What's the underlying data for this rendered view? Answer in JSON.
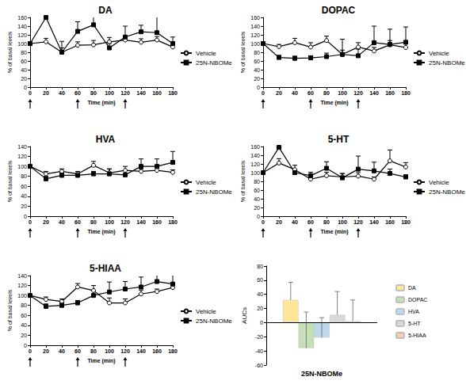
{
  "chart_data": [
    {
      "type": "line",
      "title": "DA",
      "x_label": "Time (min)",
      "y_label": "% of basal levels",
      "x": [
        0,
        20,
        40,
        60,
        80,
        100,
        120,
        140,
        160,
        180
      ],
      "xlim": [
        0,
        180
      ],
      "xticks": [
        0,
        20,
        40,
        60,
        80,
        100,
        120,
        140,
        160,
        180
      ],
      "ylim": [
        0,
        160
      ],
      "yticks": [
        0,
        20,
        40,
        60,
        80,
        100,
        120,
        140,
        160
      ],
      "injections": [
        0,
        60,
        120
      ],
      "grid": false,
      "legend": "right",
      "series": [
        {
          "name": "Vehicle",
          "color": "#000000",
          "marker": "circle-open",
          "values": [
            100,
            104,
            80,
            96,
            97,
            104,
            108,
            103,
            108,
            92
          ],
          "errors": [
            0,
            8,
            10,
            8,
            10,
            10,
            10,
            8,
            8,
            8
          ]
        },
        {
          "name": "25N-NBOMe",
          "color": "#000000",
          "marker": "square",
          "values": [
            100,
            160,
            80,
            128,
            143,
            90,
            115,
            127,
            125,
            100
          ],
          "errors": [
            0,
            35,
            25,
            22,
            30,
            10,
            25,
            15,
            45,
            15
          ]
        }
      ]
    },
    {
      "type": "line",
      "title": "DOPAC",
      "x_label": "Time (min)",
      "y_label": "% of basal levels",
      "x": [
        0,
        20,
        40,
        60,
        80,
        100,
        120,
        140,
        160,
        180
      ],
      "xlim": [
        0,
        180
      ],
      "xticks": [
        0,
        20,
        40,
        60,
        80,
        100,
        120,
        140,
        160,
        180
      ],
      "ylim": [
        0,
        160
      ],
      "yticks": [
        0,
        20,
        40,
        60,
        80,
        100,
        120,
        140,
        160
      ],
      "injections": [
        0,
        60,
        120
      ],
      "grid": false,
      "legend": "right",
      "series": [
        {
          "name": "Vehicle",
          "color": "#000000",
          "marker": "circle-open",
          "values": [
            100,
            93,
            102,
            92,
            107,
            75,
            92,
            83,
            97,
            91
          ],
          "errors": [
            0,
            5,
            10,
            10,
            10,
            35,
            10,
            8,
            10,
            8
          ]
        },
        {
          "name": "25N-NBOMe",
          "color": "#000000",
          "marker": "square",
          "values": [
            100,
            68,
            66,
            67,
            70,
            75,
            72,
            102,
            98,
            103
          ],
          "errors": [
            0,
            5,
            5,
            5,
            8,
            10,
            15,
            38,
            35,
            35
          ]
        }
      ]
    },
    {
      "type": "line",
      "title": "HVA",
      "x_label": "Time (min)",
      "y_label": "% of basal levels",
      "x": [
        0,
        20,
        40,
        60,
        80,
        100,
        120,
        140,
        160,
        180
      ],
      "xlim": [
        0,
        180
      ],
      "xticks": [
        0,
        20,
        40,
        60,
        80,
        100,
        120,
        140,
        160,
        180
      ],
      "ylim": [
        0,
        140
      ],
      "yticks": [
        0,
        20,
        40,
        60,
        80,
        100,
        120,
        140
      ],
      "injections": [
        0,
        60,
        120
      ],
      "grid": false,
      "legend": "right",
      "series": [
        {
          "name": "Vehicle",
          "color": "#000000",
          "marker": "circle-open",
          "values": [
            100,
            85,
            90,
            85,
            102,
            87,
            92,
            90,
            92,
            88
          ],
          "errors": [
            0,
            5,
            5,
            5,
            8,
            8,
            8,
            5,
            5,
            5
          ]
        },
        {
          "name": "25N-NBOMe",
          "color": "#000000",
          "marker": "square",
          "values": [
            100,
            75,
            82,
            82,
            85,
            85,
            83,
            100,
            100,
            108
          ],
          "errors": [
            0,
            5,
            5,
            5,
            5,
            10,
            10,
            15,
            15,
            22
          ]
        }
      ]
    },
    {
      "type": "line",
      "title": "5-HT",
      "x_label": "Time (min)",
      "y_label": "% of basal levels",
      "x": [
        0,
        20,
        40,
        60,
        80,
        100,
        120,
        140,
        160,
        180
      ],
      "xlim": [
        0,
        180
      ],
      "xticks": [
        0,
        20,
        40,
        60,
        80,
        100,
        120,
        140,
        160,
        180
      ],
      "ylim": [
        0,
        160
      ],
      "yticks": [
        0,
        20,
        40,
        60,
        80,
        100,
        120,
        140,
        160
      ],
      "injections": [
        0,
        60,
        120
      ],
      "grid": false,
      "legend": "right",
      "series": [
        {
          "name": "Vehicle",
          "color": "#000000",
          "marker": "circle-open",
          "values": [
            100,
            122,
            107,
            85,
            93,
            90,
            92,
            85,
            127,
            113
          ],
          "errors": [
            0,
            10,
            10,
            5,
            8,
            8,
            8,
            5,
            25,
            10
          ]
        },
        {
          "name": "25N-NBOMe",
          "color": "#000000",
          "marker": "square",
          "values": [
            100,
            158,
            100,
            93,
            110,
            88,
            108,
            104,
            98,
            90
          ],
          "errors": [
            0,
            68,
            8,
            8,
            15,
            10,
            30,
            20,
            10,
            5
          ]
        }
      ]
    },
    {
      "type": "line",
      "title": "5-HIAA",
      "x_label": "Time (min)",
      "y_label": "% of basal levels",
      "x": [
        0,
        20,
        40,
        60,
        80,
        100,
        120,
        140,
        160,
        180
      ],
      "xlim": [
        0,
        180
      ],
      "xticks": [
        0,
        20,
        40,
        60,
        80,
        100,
        120,
        140,
        160,
        180
      ],
      "ylim": [
        0,
        140
      ],
      "yticks": [
        0,
        20,
        40,
        60,
        80,
        100,
        120,
        140
      ],
      "injections": [
        0,
        60,
        120
      ],
      "grid": false,
      "legend": "right",
      "series": [
        {
          "name": "Vehicle",
          "color": "#000000",
          "marker": "circle-open",
          "values": [
            100,
            92,
            88,
            117,
            110,
            85,
            85,
            103,
            108,
            116
          ],
          "errors": [
            0,
            5,
            5,
            7,
            10,
            10,
            8,
            8,
            5,
            5
          ]
        },
        {
          "name": "25N-NBOMe",
          "color": "#000000",
          "marker": "square",
          "values": [
            100,
            78,
            80,
            85,
            100,
            107,
            113,
            117,
            128,
            123
          ],
          "errors": [
            0,
            5,
            5,
            5,
            10,
            20,
            15,
            20,
            20,
            28
          ]
        }
      ]
    },
    {
      "type": "bar",
      "y_label": "AUCs",
      "categories": [
        "25N-NBOMe"
      ],
      "ylim": [
        -60,
        80
      ],
      "yticks": [
        -60,
        -40,
        -20,
        0,
        20,
        40,
        60,
        80
      ],
      "grid": false,
      "legend": "right",
      "series": [
        {
          "name": "DA",
          "color": "#ffe699",
          "values": [
            32
          ],
          "errors": [
            25
          ]
        },
        {
          "name": "DOPAC",
          "color": "#c5e0b4",
          "values": [
            -36
          ],
          "errors": [
            51
          ]
        },
        {
          "name": "HVA",
          "color": "#bdd7ee",
          "values": [
            -21
          ],
          "errors": [
            28
          ]
        },
        {
          "name": "5-HT",
          "color": "#d9d9d9",
          "values": [
            11
          ],
          "errors": [
            33
          ]
        },
        {
          "name": "5-HIAA",
          "color": "#f8cbad",
          "values": [
            2
          ],
          "errors": [
            30
          ]
        }
      ]
    }
  ]
}
